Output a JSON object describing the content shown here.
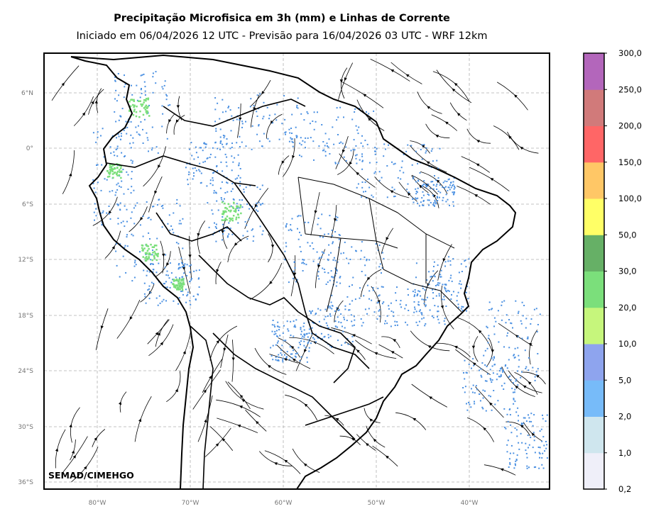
{
  "title": "Precipitação Microfisica em 3h (mm) e Linhas de Corrente",
  "subtitle": "Iniciado em 06/04/2026 12 UTC - Previsão para 16/04/2026 03 UTC - WRF 12km",
  "credit": "SEMAD/CIMEHGO",
  "lat_ticks": [
    "6°N",
    "0°",
    "6°S",
    "12°S",
    "18°S",
    "24°S",
    "30°S",
    "36°S"
  ],
  "lon_ticks": [
    "80°W",
    "70°W",
    "60°W",
    "50°W",
    "40°W"
  ],
  "colorbar": {
    "labels": [
      "0,2",
      "1,0",
      "2,0",
      "5,0",
      "10,0",
      "20,0",
      "30,0",
      "50,0",
      "100,0",
      "150,0",
      "200,0",
      "250,0",
      "300,0"
    ],
    "colors": [
      "#efeff9",
      "#cfe6ee",
      "#77bbf9",
      "#8ea4ee",
      "#c6f67c",
      "#7bdf7b",
      "#66b066",
      "#ffff66",
      "#ffc766",
      "#ff6666",
      "#d17a7a",
      "#b366bb"
    ]
  },
  "colors": {
    "frame": "#000000",
    "grid": "#b0b0b0",
    "streamline": "#000000",
    "rain_light": "#4a90e2",
    "rain_green": "#7bdf7b"
  }
}
